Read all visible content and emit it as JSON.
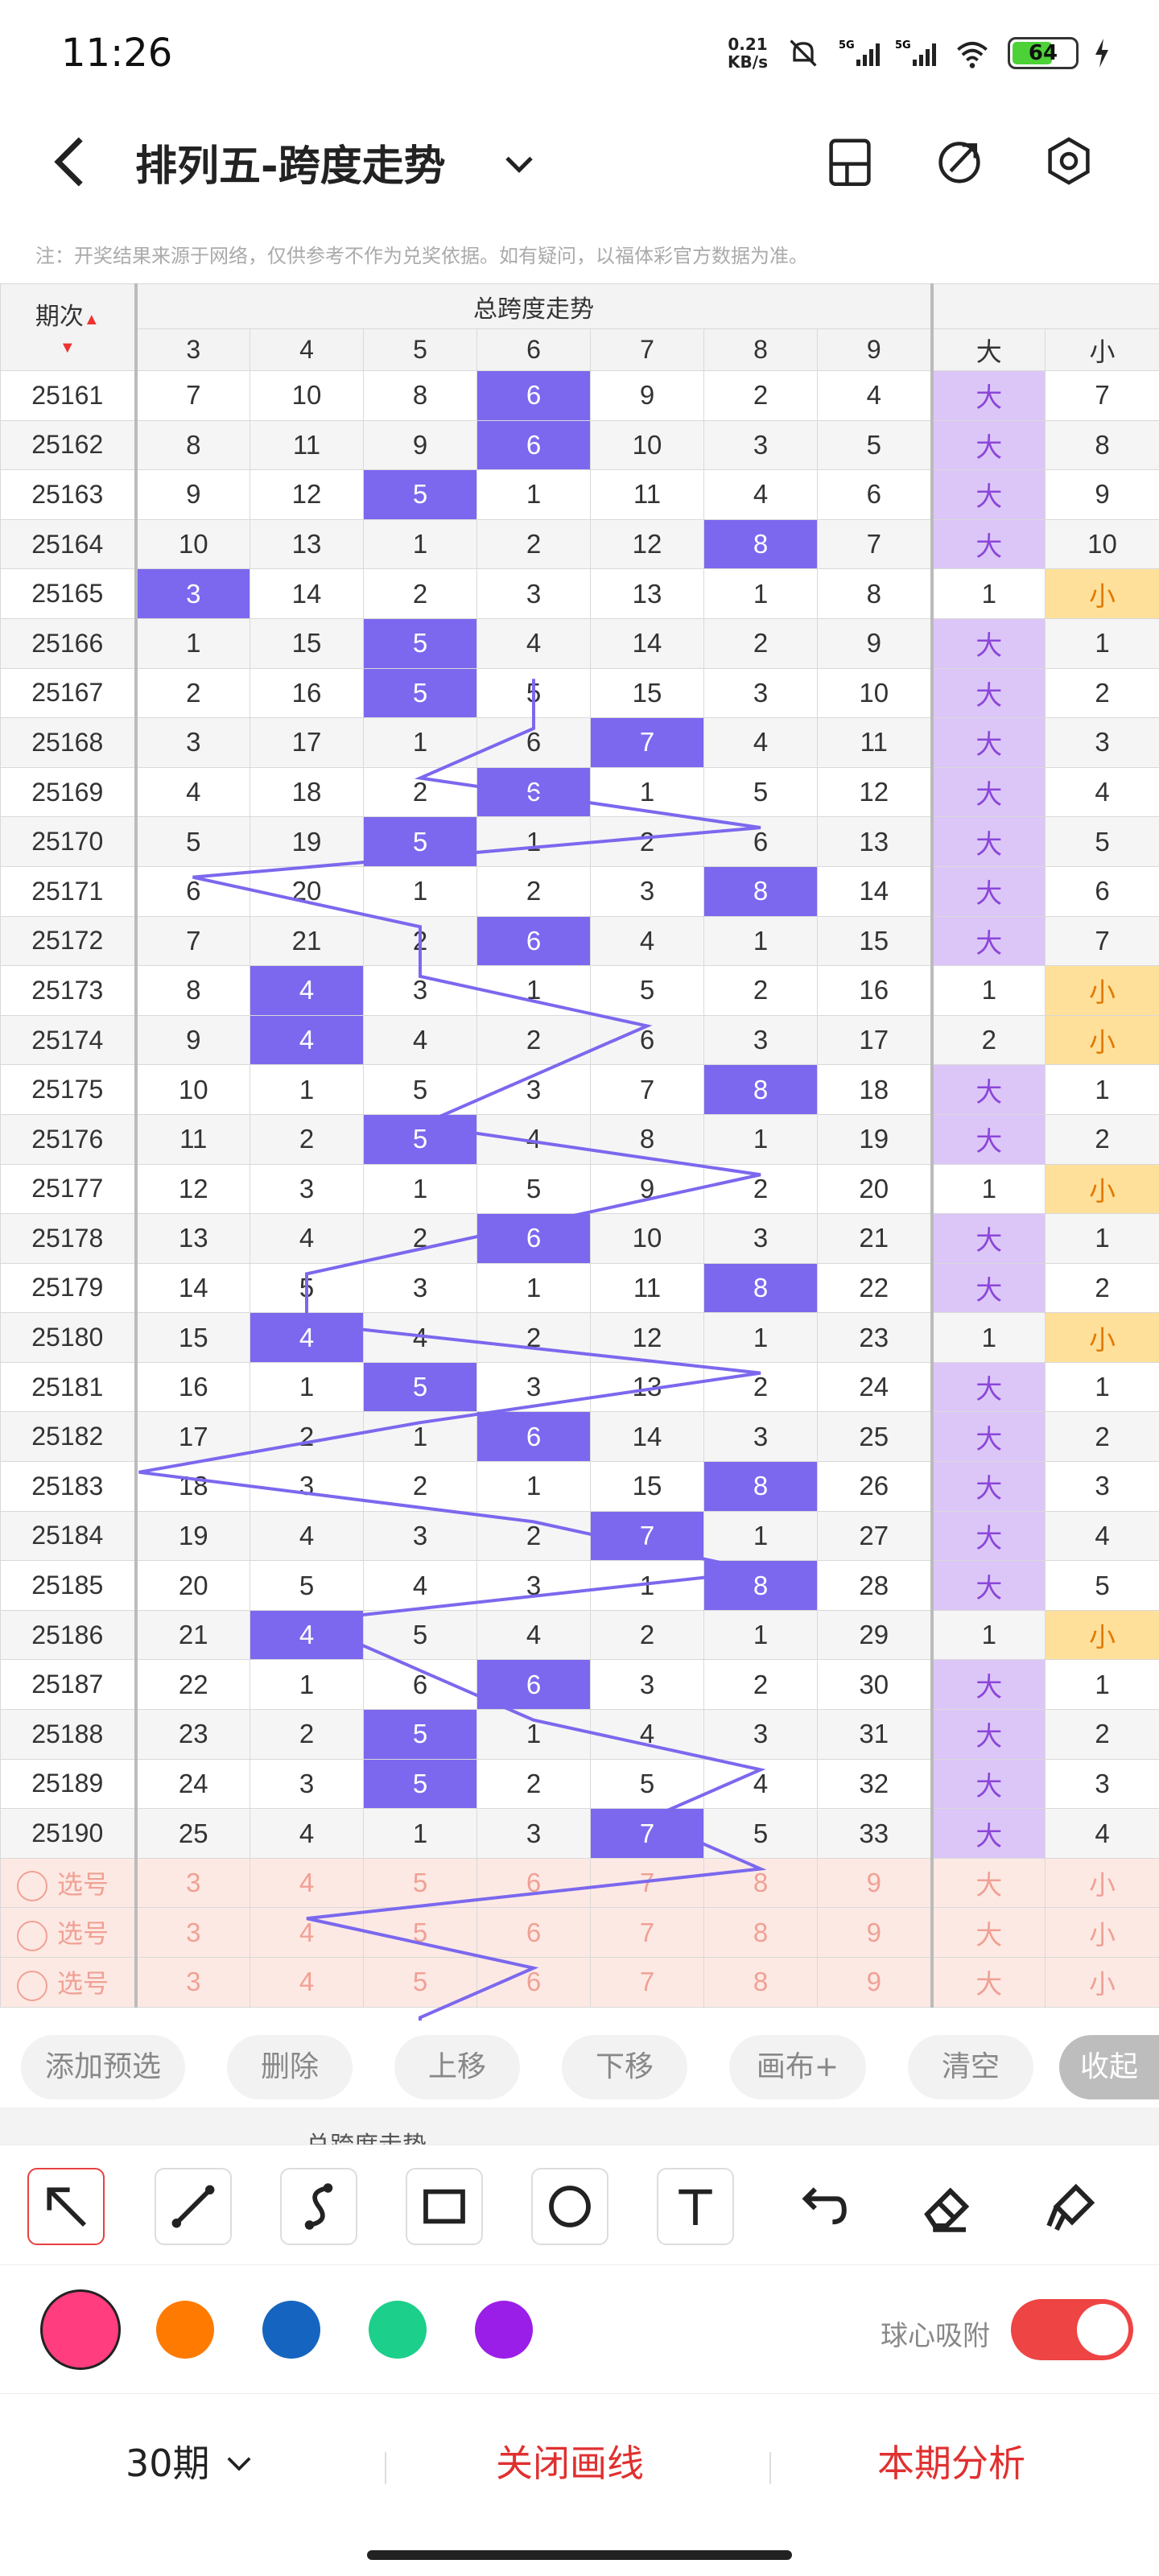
{
  "status": {
    "time": "11:26",
    "speed_value": "0.21",
    "speed_unit": "KB/s",
    "battery": "64"
  },
  "header": {
    "title": "排列五-跨度走势"
  },
  "notice": "注：开奖结果来源于网络，仅供参考不作为兑奖依据。如有疑问，以福体彩官方数据为准。",
  "table": {
    "period_header": "期次",
    "group_header": "总跨度走势",
    "columns": [
      "3",
      "4",
      "5",
      "6",
      "7",
      "8",
      "9",
      "大",
      "小"
    ],
    "big_label": "大",
    "small_label": "小",
    "rows": [
      {
        "period": "25161",
        "cells": [
          "7",
          "10",
          "8",
          "6",
          "9",
          "2",
          "4",
          "大",
          "7"
        ],
        "hit": 3,
        "bs": "big"
      },
      {
        "period": "25162",
        "cells": [
          "8",
          "11",
          "9",
          "6",
          "10",
          "3",
          "5",
          "大",
          "8"
        ],
        "hit": 3,
        "bs": "big"
      },
      {
        "period": "25163",
        "cells": [
          "9",
          "12",
          "5",
          "1",
          "11",
          "4",
          "6",
          "大",
          "9"
        ],
        "hit": 2,
        "bs": "big"
      },
      {
        "period": "25164",
        "cells": [
          "10",
          "13",
          "1",
          "2",
          "12",
          "8",
          "7",
          "大",
          "10"
        ],
        "hit": 5,
        "bs": "big"
      },
      {
        "period": "25165",
        "cells": [
          "3",
          "14",
          "2",
          "3",
          "13",
          "1",
          "8",
          "1",
          "小"
        ],
        "hit": 0,
        "bs": "small"
      },
      {
        "period": "25166",
        "cells": [
          "1",
          "15",
          "5",
          "4",
          "14",
          "2",
          "9",
          "大",
          "1"
        ],
        "hit": 2,
        "bs": "big"
      },
      {
        "period": "25167",
        "cells": [
          "2",
          "16",
          "5",
          "5",
          "15",
          "3",
          "10",
          "大",
          "2"
        ],
        "hit": 2,
        "bs": "big"
      },
      {
        "period": "25168",
        "cells": [
          "3",
          "17",
          "1",
          "6",
          "7",
          "4",
          "11",
          "大",
          "3"
        ],
        "hit": 4,
        "bs": "big"
      },
      {
        "period": "25169",
        "cells": [
          "4",
          "18",
          "2",
          "6",
          "1",
          "5",
          "12",
          "大",
          "4"
        ],
        "hit": 3,
        "bs": "big"
      },
      {
        "period": "25170",
        "cells": [
          "5",
          "19",
          "5",
          "1",
          "2",
          "6",
          "13",
          "大",
          "5"
        ],
        "hit": 2,
        "bs": "big"
      },
      {
        "period": "25171",
        "cells": [
          "6",
          "20",
          "1",
          "2",
          "3",
          "8",
          "14",
          "大",
          "6"
        ],
        "hit": 5,
        "bs": "big"
      },
      {
        "period": "25172",
        "cells": [
          "7",
          "21",
          "2",
          "6",
          "4",
          "1",
          "15",
          "大",
          "7"
        ],
        "hit": 3,
        "bs": "big"
      },
      {
        "period": "25173",
        "cells": [
          "8",
          "4",
          "3",
          "1",
          "5",
          "2",
          "16",
          "1",
          "小"
        ],
        "hit": 1,
        "bs": "small"
      },
      {
        "period": "25174",
        "cells": [
          "9",
          "4",
          "4",
          "2",
          "6",
          "3",
          "17",
          "2",
          "小"
        ],
        "hit": 1,
        "bs": "small"
      },
      {
        "period": "25175",
        "cells": [
          "10",
          "1",
          "5",
          "3",
          "7",
          "8",
          "18",
          "大",
          "1"
        ],
        "hit": 5,
        "bs": "big"
      },
      {
        "period": "25176",
        "cells": [
          "11",
          "2",
          "5",
          "4",
          "8",
          "1",
          "19",
          "大",
          "2"
        ],
        "hit": 2,
        "bs": "big"
      },
      {
        "period": "25177",
        "cells": [
          "12",
          "3",
          "1",
          "5",
          "9",
          "2",
          "20",
          "1",
          "小"
        ],
        "hit": -1,
        "bs": "small"
      },
      {
        "period": "25178",
        "cells": [
          "13",
          "4",
          "2",
          "6",
          "10",
          "3",
          "21",
          "大",
          "1"
        ],
        "hit": 3,
        "bs": "big"
      },
      {
        "period": "25179",
        "cells": [
          "14",
          "5",
          "3",
          "1",
          "11",
          "8",
          "22",
          "大",
          "2"
        ],
        "hit": 5,
        "bs": "big"
      },
      {
        "period": "25180",
        "cells": [
          "15",
          "4",
          "4",
          "2",
          "12",
          "1",
          "23",
          "1",
          "小"
        ],
        "hit": 1,
        "bs": "small"
      },
      {
        "period": "25181",
        "cells": [
          "16",
          "1",
          "5",
          "3",
          "13",
          "2",
          "24",
          "大",
          "1"
        ],
        "hit": 2,
        "bs": "big"
      },
      {
        "period": "25182",
        "cells": [
          "17",
          "2",
          "1",
          "6",
          "14",
          "3",
          "25",
          "大",
          "2"
        ],
        "hit": 3,
        "bs": "big"
      },
      {
        "period": "25183",
        "cells": [
          "18",
          "3",
          "2",
          "1",
          "15",
          "8",
          "26",
          "大",
          "3"
        ],
        "hit": 5,
        "bs": "big"
      },
      {
        "period": "25184",
        "cells": [
          "19",
          "4",
          "3",
          "2",
          "7",
          "1",
          "27",
          "大",
          "4"
        ],
        "hit": 4,
        "bs": "big"
      },
      {
        "period": "25185",
        "cells": [
          "20",
          "5",
          "4",
          "3",
          "1",
          "8",
          "28",
          "大",
          "5"
        ],
        "hit": 5,
        "bs": "big"
      },
      {
        "period": "25186",
        "cells": [
          "21",
          "4",
          "5",
          "4",
          "2",
          "1",
          "29",
          "1",
          "小"
        ],
        "hit": 1,
        "bs": "small"
      },
      {
        "period": "25187",
        "cells": [
          "22",
          "1",
          "6",
          "6",
          "3",
          "2",
          "30",
          "大",
          "1"
        ],
        "hit": 3,
        "bs": "big"
      },
      {
        "period": "25188",
        "cells": [
          "23",
          "2",
          "5",
          "1",
          "4",
          "3",
          "31",
          "大",
          "2"
        ],
        "hit": 2,
        "bs": "big"
      },
      {
        "period": "25189",
        "cells": [
          "24",
          "3",
          "5",
          "2",
          "5",
          "4",
          "32",
          "大",
          "3"
        ],
        "hit": 2,
        "bs": "big"
      },
      {
        "period": "25190",
        "cells": [
          "25",
          "4",
          "1",
          "3",
          "7",
          "5",
          "33",
          "大",
          "4"
        ],
        "hit": 4,
        "bs": "big"
      }
    ],
    "preselect_label": "选号",
    "preselect_cells": [
      "3",
      "4",
      "5",
      "6",
      "7",
      "8",
      "9",
      "大",
      "小"
    ]
  },
  "actions": {
    "add": "添加预选",
    "delete": "删除",
    "up": "上移",
    "down": "下移",
    "canvas": "画布+",
    "clear": "清空",
    "collapse": "收起"
  },
  "ghost_header": "总跨度走势",
  "tools": [
    "arrow-tool",
    "line-tool",
    "curve-tool",
    "rect-tool",
    "circle-tool",
    "text-tool",
    "undo",
    "eraser",
    "clear-brush"
  ],
  "colors": {
    "pink": "#ff3d7f",
    "orange": "#ff7a00",
    "blue": "#1565c0",
    "green": "#1ccf8a",
    "purple": "#9b1ee8",
    "hit": "#7b68ee",
    "big_bg": "#dcc6f8",
    "small_bg": "#ffe09a"
  },
  "snap": {
    "label": "球心吸附",
    "on": true
  },
  "bottom": {
    "period_count": "30期",
    "close_lines": "关闭画线",
    "analysis": "本期分析"
  }
}
